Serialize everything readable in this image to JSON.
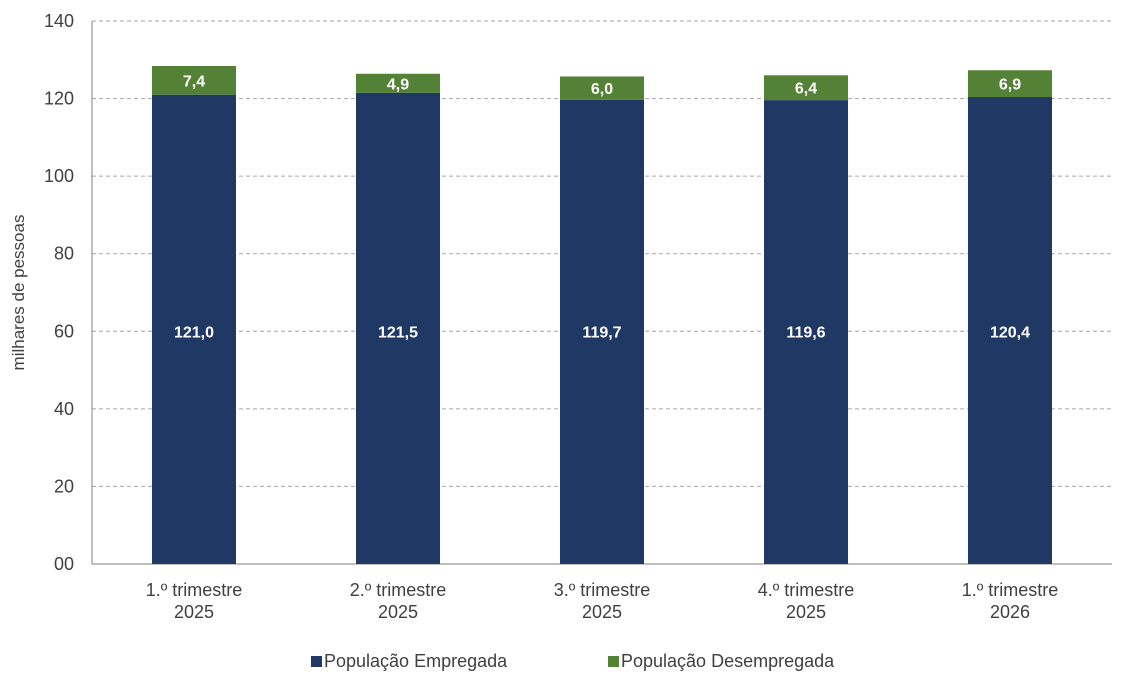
{
  "chart_data": {
    "type": "bar",
    "stacked": true,
    "categories": [
      [
        "1.º trimestre",
        "2025"
      ],
      [
        "2.º trimestre",
        "2025"
      ],
      [
        "3.º trimestre",
        "2025"
      ],
      [
        "4.º trimestre",
        "2025"
      ],
      [
        "1.º trimestre",
        "2026"
      ]
    ],
    "series": [
      {
        "name": "População Empregada",
        "color": "#1f3864",
        "values": [
          121.0,
          121.5,
          119.7,
          119.6,
          120.4
        ],
        "labels": [
          "121,0",
          "121,5",
          "119,7",
          "119,6",
          "120,4"
        ]
      },
      {
        "name": "População Desempregada",
        "color": "#538135",
        "values": [
          7.4,
          4.9,
          6.0,
          6.4,
          6.9
        ],
        "labels": [
          "7,4",
          "4,9",
          "6,0",
          "6,4",
          "6,9"
        ]
      }
    ],
    "ylabel": "milhares de pessoas",
    "ylim": [
      0,
      140
    ],
    "yticks": [
      0,
      20,
      40,
      60,
      80,
      100,
      120,
      140
    ],
    "ytick_labels": [
      "00",
      "20",
      "40",
      "60",
      "80",
      "100",
      "120",
      "140"
    ],
    "grid": true,
    "grid_color": "#a6a6a6",
    "legend_position": "bottom"
  }
}
